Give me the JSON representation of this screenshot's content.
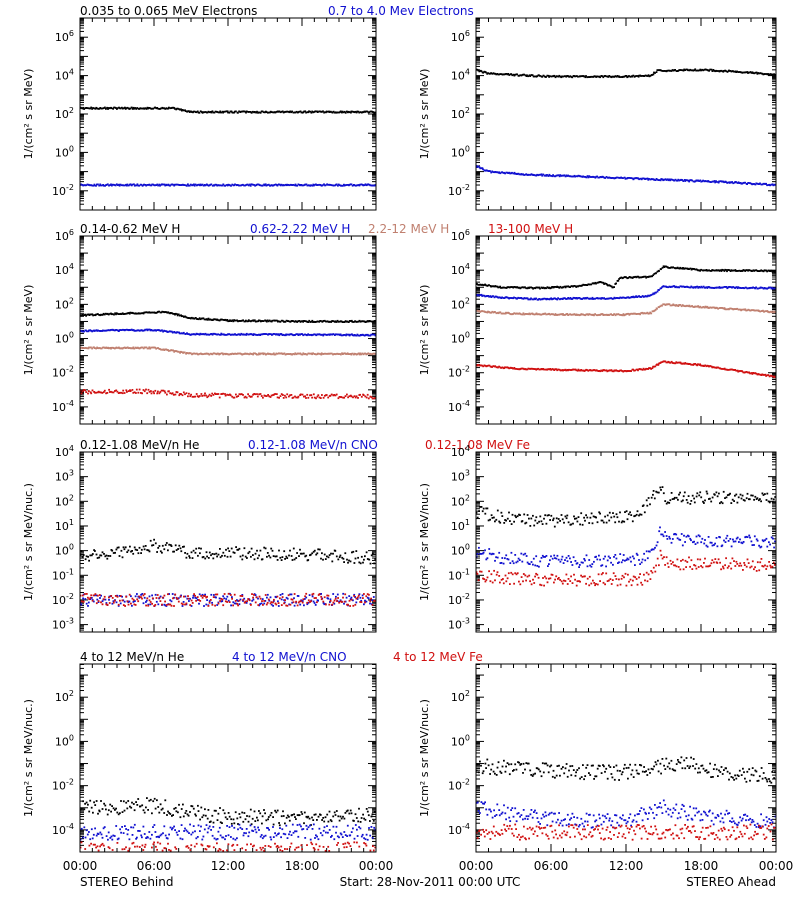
{
  "chart_data": [
    {
      "type": "scatter",
      "row_titles": [
        {
          "text": "0.035 to 0.065 MeV Electrons",
          "color": "#000000"
        },
        {
          "text": "0.7 to 4.0 Mev Electrons",
          "color": "#1010d0"
        }
      ],
      "ylabel": "1/(cm² s sr MeV)",
      "yticks": [
        {
          "exp": -2,
          "label": "10-2"
        },
        {
          "exp": 0,
          "label": "100"
        },
        {
          "exp": 2,
          "label": "102"
        },
        {
          "exp": 4,
          "label": "104"
        },
        {
          "exp": 6,
          "label": "106"
        }
      ],
      "ylim_log10": [
        -3.0,
        7.0
      ],
      "panels": [
        {
          "series": [
            {
              "color": "#000000",
              "x": [
                0,
                6,
                7.5,
                9,
                12,
                18,
                24
              ],
              "y": [
                2.3,
                2.3,
                2.3,
                2.1,
                2.1,
                2.1,
                2.1
              ]
            },
            {
              "color": "#1010d0",
              "x": [
                0,
                6,
                12,
                18,
                24
              ],
              "y": [
                -1.7,
                -1.7,
                -1.7,
                -1.7,
                -1.7
              ]
            }
          ]
        },
        {
          "series": [
            {
              "color": "#000000",
              "x": [
                0,
                1,
                6,
                12,
                14,
                14.5,
                18,
                21,
                24
              ],
              "y": [
                4.3,
                4.1,
                3.95,
                3.95,
                4.0,
                4.25,
                4.3,
                4.2,
                4.05
              ]
            },
            {
              "color": "#1010d0",
              "x": [
                0,
                1,
                4,
                8,
                12,
                16,
                20,
                24
              ],
              "y": [
                -0.7,
                -1.0,
                -1.15,
                -1.25,
                -1.35,
                -1.45,
                -1.55,
                -1.7
              ]
            }
          ]
        }
      ]
    },
    {
      "type": "scatter",
      "row_titles": [
        {
          "text": "0.14-0.62 MeV H",
          "color": "#000000"
        },
        {
          "text": "0.62-2.22 MeV H",
          "color": "#1010d0"
        },
        {
          "text": "2.2-12 MeV H",
          "color": "#c08070"
        },
        {
          "text": "13-100 MeV H",
          "color": "#d01010"
        }
      ],
      "ylabel": "1/(cm² s sr MeV)",
      "yticks": [
        {
          "exp": -4,
          "label": "10-4"
        },
        {
          "exp": -2,
          "label": "10-2"
        },
        {
          "exp": 0,
          "label": "100"
        },
        {
          "exp": 2,
          "label": "102"
        },
        {
          "exp": 4,
          "label": "104"
        },
        {
          "exp": 6,
          "label": "106"
        }
      ],
      "ylim_log10": [
        -5.0,
        6.0
      ],
      "panels": [
        {
          "series": [
            {
              "color": "#000000",
              "x": [
                0,
                3,
                7,
                9,
                12,
                18,
                24
              ],
              "y": [
                1.35,
                1.45,
                1.55,
                1.2,
                1.05,
                1.0,
                1.0
              ]
            },
            {
              "color": "#1010d0",
              "x": [
                0,
                6,
                9,
                12,
                24
              ],
              "y": [
                0.45,
                0.5,
                0.25,
                0.25,
                0.2
              ]
            },
            {
              "color": "#c08070",
              "x": [
                0,
                6,
                9,
                12,
                24
              ],
              "y": [
                -0.55,
                -0.55,
                -0.9,
                -0.9,
                -0.9
              ]
            },
            {
              "color": "#d01010",
              "x": [
                0,
                6,
                9,
                12,
                24
              ],
              "y": [
                -3.1,
                -3.1,
                -3.3,
                -3.35,
                -3.4
              ]
            }
          ]
        },
        {
          "series": [
            {
              "color": "#000000",
              "x": [
                0,
                2,
                5,
                8,
                10,
                11,
                11.5,
                14,
                15,
                18,
                24
              ],
              "y": [
                3.2,
                3.0,
                2.95,
                3.05,
                3.3,
                3.0,
                3.55,
                3.6,
                4.2,
                4.0,
                3.95
              ]
            },
            {
              "color": "#1010d0",
              "x": [
                0,
                2,
                5,
                8,
                11,
                14,
                15,
                18,
                24
              ],
              "y": [
                2.55,
                2.4,
                2.3,
                2.35,
                2.35,
                2.5,
                3.05,
                3.0,
                2.95
              ]
            },
            {
              "color": "#c08070",
              "x": [
                0,
                3,
                8,
                12,
                14,
                15,
                18,
                24
              ],
              "y": [
                1.6,
                1.45,
                1.4,
                1.4,
                1.5,
                2.0,
                1.85,
                1.55
              ]
            },
            {
              "color": "#d01010",
              "x": [
                0,
                3,
                8,
                12,
                14,
                15,
                18,
                24
              ],
              "y": [
                -1.55,
                -1.75,
                -1.85,
                -1.9,
                -1.75,
                -1.35,
                -1.55,
                -2.25
              ]
            }
          ]
        }
      ]
    },
    {
      "type": "scatter",
      "row_titles": [
        {
          "text": "0.12-1.08 MeV/n He",
          "color": "#000000"
        },
        {
          "text": "0.12-1.08 MeV/n CNO",
          "color": "#1010d0"
        },
        {
          "text": "0.12-1.08 MeV Fe",
          "color": "#d01010"
        }
      ],
      "ylabel": "1/(cm² s sr MeV/nuc.)",
      "yticks": [
        {
          "exp": -3,
          "label": "10-3"
        },
        {
          "exp": -2,
          "label": "10-2"
        },
        {
          "exp": -1,
          "label": "10-1"
        },
        {
          "exp": 0,
          "label": "100"
        },
        {
          "exp": 1,
          "label": "101"
        },
        {
          "exp": 2,
          "label": "102"
        },
        {
          "exp": 3,
          "label": "103"
        },
        {
          "exp": 4,
          "label": "104"
        }
      ],
      "ylim_log10": [
        -3.3,
        4.0
      ],
      "panels": [
        {
          "series": [
            {
              "color": "#000000",
              "x": [
                0,
                3,
                6,
                9,
                12,
                18,
                24
              ],
              "y": [
                -0.2,
                -0.1,
                0.2,
                -0.1,
                -0.1,
                -0.15,
                -0.3
              ]
            },
            {
              "color": "#1010d0",
              "x": [
                0,
                24
              ],
              "y": [
                -2.0,
                -2.0
              ]
            },
            {
              "color": "#d01010",
              "x": [
                0,
                24
              ],
              "y": [
                -2.0,
                -2.0
              ]
            }
          ]
        },
        {
          "series": [
            {
              "color": "#000000",
              "x": [
                0,
                2,
                4,
                6,
                10,
                12.5,
                13.5,
                14.7,
                15.2,
                18,
                24
              ],
              "y": [
                1.6,
                1.35,
                1.25,
                1.2,
                1.35,
                1.4,
                1.8,
                2.55,
                2.1,
                2.15,
                2.15
              ]
            },
            {
              "color": "#1010d0",
              "x": [
                0,
                2,
                6,
                10,
                13,
                14,
                14.8,
                15.5,
                18,
                24
              ],
              "y": [
                0.0,
                -0.3,
                -0.45,
                -0.4,
                -0.35,
                -0.1,
                0.9,
                0.45,
                0.4,
                0.35
              ]
            },
            {
              "color": "#d01010",
              "x": [
                0,
                2,
                6,
                10,
                13,
                14,
                14.8,
                15.5,
                18,
                24
              ],
              "y": [
                -0.95,
                -1.1,
                -1.2,
                -1.15,
                -1.2,
                -1.0,
                -0.2,
                -0.55,
                -0.5,
                -0.6
              ]
            }
          ]
        }
      ]
    },
    {
      "type": "scatter",
      "row_titles": [
        {
          "text": "4 to 12 MeV/n He",
          "color": "#000000"
        },
        {
          "text": "4 to 12 MeV/n CNO",
          "color": "#1010d0"
        },
        {
          "text": "4 to 12 MeV Fe",
          "color": "#d01010"
        }
      ],
      "ylabel": "1/(cm² s sr MeV/nuc.)",
      "yticks": [
        {
          "exp": -4,
          "label": "10-4"
        },
        {
          "exp": -2,
          "label": "10-2"
        },
        {
          "exp": 0,
          "label": "100"
        },
        {
          "exp": 2,
          "label": "102"
        }
      ],
      "ylim_log10": [
        -5.0,
        3.5
      ],
      "panels": [
        {
          "series": [
            {
              "color": "#000000",
              "x": [
                0,
                6,
                9,
                12,
                18,
                24
              ],
              "y": [
                -3.0,
                -2.9,
                -3.2,
                -3.4,
                -3.5,
                -3.3
              ]
            },
            {
              "color": "#1010d0",
              "x": [
                0,
                24
              ],
              "y": [
                -4.1,
                -4.1
              ]
            },
            {
              "color": "#d01010",
              "x": [
                0,
                24
              ],
              "y": [
                -4.9,
                -4.9
              ]
            }
          ]
        },
        {
          "series": [
            {
              "color": "#000000",
              "x": [
                0,
                3,
                6,
                9,
                12,
                13.5,
                15,
                17,
                18,
                24
              ],
              "y": [
                -1.1,
                -1.25,
                -1.35,
                -1.4,
                -1.4,
                -1.35,
                -1.1,
                -1.0,
                -1.3,
                -1.6
              ]
            },
            {
              "color": "#1010d0",
              "x": [
                0,
                3,
                6,
                9,
                12,
                15,
                18,
                24
              ],
              "y": [
                -3.0,
                -3.3,
                -3.5,
                -3.6,
                -3.6,
                -3.0,
                -3.4,
                -3.6
              ]
            },
            {
              "color": "#d01010",
              "x": [
                0,
                24
              ],
              "y": [
                -4.1,
                -4.1
              ]
            }
          ]
        }
      ]
    }
  ],
  "xticks": [
    "00:00",
    "06:00",
    "12:00",
    "18:00",
    "00:00"
  ],
  "footer": {
    "left": "STEREO Behind",
    "center": "Start: 28-Nov-2011 00:00 UTC",
    "right": "STEREO Ahead"
  }
}
